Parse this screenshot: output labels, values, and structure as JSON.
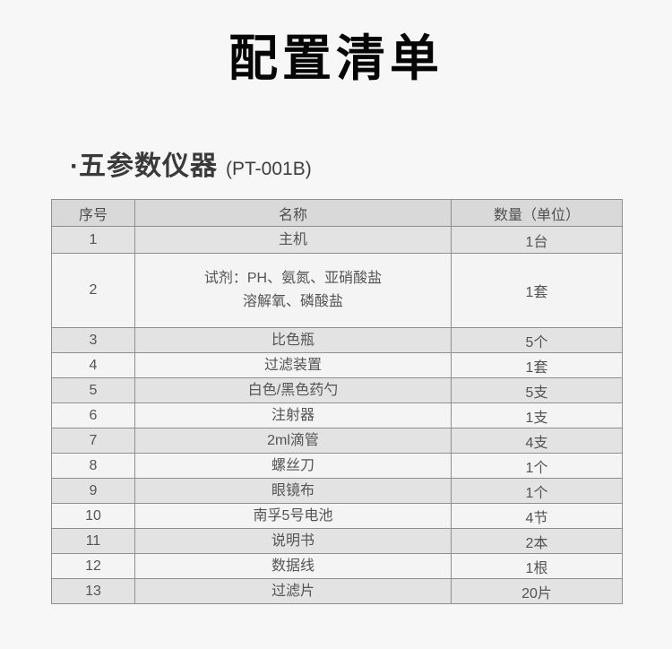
{
  "page": {
    "title": "配置清单"
  },
  "section": {
    "bullet": "·",
    "name": "五参数仪器",
    "model": "(PT-001B)"
  },
  "table": {
    "headers": [
      "序号",
      "名称",
      "数量（单位）"
    ],
    "rows": [
      {
        "no": "1",
        "name": "主机",
        "qty": "1台"
      },
      {
        "no": "2",
        "name": "试剂：PH、氨氮、亚硝酸盐\n溶解氧、磷酸盐",
        "qty": "1套"
      },
      {
        "no": "3",
        "name": "比色瓶",
        "qty": "5个"
      },
      {
        "no": "4",
        "name": "过滤装置",
        "qty": "1套"
      },
      {
        "no": "5",
        "name": "白色/黑色药勺",
        "qty": "5支"
      },
      {
        "no": "6",
        "name": "注射器",
        "qty": "1支"
      },
      {
        "no": "7",
        "name": "2ml滴管",
        "qty": "4支"
      },
      {
        "no": "8",
        "name": "螺丝刀",
        "qty": "1个"
      },
      {
        "no": "9",
        "name": "眼镜布",
        "qty": "1个"
      },
      {
        "no": "10",
        "name": "南孚5号电池",
        "qty": "4节"
      },
      {
        "no": "11",
        "name": "说明书",
        "qty": "2本"
      },
      {
        "no": "12",
        "name": "数据线",
        "qty": "1根"
      },
      {
        "no": "13",
        "name": "过滤片",
        "qty": "20片"
      }
    ]
  },
  "colors": {
    "page_background": "#f7f7f7",
    "title_text": "#050505",
    "section_text": "#3a3a3a",
    "table_header_bg": "#d9d9d9",
    "table_row_gray_bg": "#e3e3e3",
    "table_row_light_bg": "#f4f4f4",
    "table_border": "#8f8f8f",
    "table_text": "#545454"
  }
}
